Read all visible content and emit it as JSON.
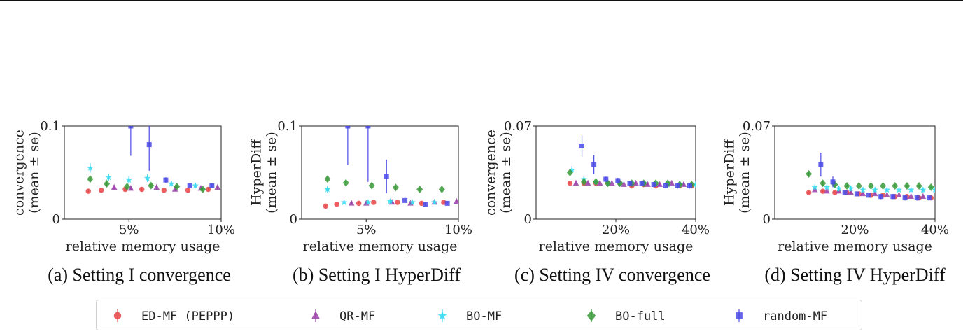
{
  "colors": {
    "ED-MF": "#e8474a",
    "QR-MF": "#9a3fa8",
    "BO-MF": "#35d8ee",
    "BO-FULL": "#3a9a3a",
    "RANDOM-MF": "#4a4ae6"
  },
  "legend": [
    {
      "key": "ED-MF",
      "label": "ED-MF (PEPPP)",
      "marker": "circle"
    },
    {
      "key": "QR-MF",
      "label": "QR-MF",
      "marker": "triangle"
    },
    {
      "key": "BO-MF",
      "label": "BO-MF",
      "marker": "star"
    },
    {
      "key": "BO-FULL",
      "label": "BO-full",
      "marker": "diamond"
    },
    {
      "key": "RANDOM-MF",
      "label": "random-MF",
      "marker": "square"
    }
  ],
  "chart_data": [
    {
      "type": "scatter",
      "caption": "(a) Setting I convergence",
      "xlabel": "relative memory usage",
      "ylabel": [
        "convergence",
        "(mean ± se)"
      ],
      "xlim": [
        1.5,
        10
      ],
      "ylim": [
        0,
        0.1
      ],
      "xticks": [
        {
          "v": 5,
          "label": "5%"
        },
        {
          "v": 10,
          "label": "10%"
        }
      ],
      "yticks": [
        {
          "v": 0,
          "label": "0"
        },
        {
          "v": 0.1,
          "label": "0.1"
        }
      ],
      "series": [
        {
          "name": "ED-MF",
          "points": [
            [
              2.8,
              0.03,
              0.002
            ],
            [
              3.5,
              0.031,
              0.002
            ],
            [
              4.8,
              0.032,
              0.002
            ],
            [
              5.7,
              0.032,
              0.002
            ],
            [
              6.9,
              0.031,
              0.002
            ],
            [
              8.2,
              0.031,
              0.002
            ],
            [
              9.3,
              0.032,
              0.002
            ]
          ]
        },
        {
          "name": "QR-MF",
          "points": [
            [
              4.2,
              0.034,
              0.002
            ],
            [
              5.1,
              0.033,
              0.002
            ],
            [
              6.5,
              0.034,
              0.002
            ],
            [
              7.5,
              0.032,
              0.002
            ],
            [
              8.9,
              0.033,
              0.002
            ],
            [
              9.8,
              0.034,
              0.002
            ]
          ]
        },
        {
          "name": "BO-MF",
          "points": [
            [
              2.9,
              0.055,
              0.005
            ],
            [
              3.9,
              0.045,
              0.004
            ],
            [
              5.0,
              0.042,
              0.004
            ],
            [
              6.0,
              0.044,
              0.004
            ],
            [
              7.3,
              0.038,
              0.003
            ],
            [
              8.6,
              0.036,
              0.003
            ]
          ]
        },
        {
          "name": "BO-FULL",
          "points": [
            [
              2.9,
              0.043,
              0.002
            ],
            [
              3.8,
              0.038,
              0.002
            ],
            [
              4.9,
              0.035,
              0.002
            ],
            [
              6.2,
              0.036,
              0.002
            ],
            [
              7.6,
              0.035,
              0.002
            ],
            [
              9.0,
              0.032,
              0.002
            ]
          ]
        },
        {
          "name": "RANDOM-MF",
          "points": [
            [
              5.1,
              0.1,
              0.032
            ],
            [
              6.1,
              0.08,
              0.028
            ],
            [
              7.0,
              0.042,
              0.003
            ],
            [
              8.3,
              0.036,
              0.002
            ],
            [
              9.5,
              0.036,
              0.002
            ]
          ]
        }
      ]
    },
    {
      "type": "scatter",
      "caption": "(b) Setting I HyperDiff",
      "xlabel": "relative memory usage",
      "ylabel": [
        "HyperDiff",
        "(mean ± se)"
      ],
      "xlim": [
        1.5,
        10
      ],
      "ylim": [
        0,
        0.1
      ],
      "xticks": [
        {
          "v": 5,
          "label": "5%"
        },
        {
          "v": 10,
          "label": "10%"
        }
      ],
      "yticks": [
        {
          "v": 0,
          "label": "0"
        },
        {
          "v": 0.1,
          "label": "0.1"
        }
      ],
      "series": [
        {
          "name": "ED-MF",
          "points": [
            [
              2.8,
              0.014,
              0.001
            ],
            [
              3.4,
              0.016,
              0.001
            ],
            [
              4.6,
              0.017,
              0.001
            ],
            [
              5.4,
              0.018,
              0.001
            ],
            [
              6.7,
              0.018,
              0.001
            ],
            [
              8.0,
              0.017,
              0.001
            ],
            [
              9.2,
              0.018,
              0.001
            ]
          ]
        },
        {
          "name": "QR-MF",
          "points": [
            [
              4.2,
              0.017,
              0.001
            ],
            [
              5.0,
              0.017,
              0.001
            ],
            [
              6.4,
              0.018,
              0.001
            ],
            [
              7.4,
              0.017,
              0.001
            ],
            [
              8.7,
              0.018,
              0.001
            ],
            [
              9.9,
              0.019,
              0.001
            ]
          ]
        },
        {
          "name": "BO-MF",
          "points": [
            [
              2.9,
              0.032,
              0.004
            ],
            [
              3.8,
              0.018,
              0.002
            ],
            [
              5.1,
              0.018,
              0.002
            ],
            [
              6.3,
              0.019,
              0.002
            ],
            [
              7.5,
              0.018,
              0.002
            ],
            [
              8.7,
              0.018,
              0.002
            ]
          ]
        },
        {
          "name": "BO-FULL",
          "points": [
            [
              2.9,
              0.043,
              0.002
            ],
            [
              3.9,
              0.039,
              0.002
            ],
            [
              5.3,
              0.036,
              0.002
            ],
            [
              6.6,
              0.034,
              0.002
            ],
            [
              7.9,
              0.032,
              0.002
            ],
            [
              9.1,
              0.032,
              0.002
            ]
          ]
        },
        {
          "name": "RANDOM-MF",
          "points": [
            [
              4.0,
              0.1,
              0.042
            ],
            [
              5.1,
              0.1,
              0.06
            ],
            [
              6.1,
              0.046,
              0.018
            ],
            [
              7.1,
              0.02,
              0.003
            ],
            [
              8.2,
              0.016,
              0.002
            ],
            [
              9.4,
              0.017,
              0.002
            ]
          ]
        }
      ]
    },
    {
      "type": "scatter",
      "caption": "(c) Setting IV convergence",
      "xlabel": "relative memory usage",
      "ylabel": [
        "convergence",
        "(mean ± se)"
      ],
      "xlim": [
        0,
        40
      ],
      "ylim": [
        0,
        0.07
      ],
      "xticks": [
        {
          "v": 20,
          "label": "20%"
        },
        {
          "v": 40,
          "label": "40%"
        }
      ],
      "yticks": [
        {
          "v": 0,
          "label": "0"
        },
        {
          "v": 0.07,
          "label": "0.07"
        }
      ],
      "series": [
        {
          "name": "ED-MF",
          "points": [
            [
              8.5,
              0.027,
              0.001
            ],
            [
              12,
              0.027,
              0.001
            ],
            [
              15,
              0.027,
              0.001
            ],
            [
              18,
              0.027,
              0.001
            ],
            [
              21,
              0.027,
              0.001
            ],
            [
              24,
              0.025,
              0.001
            ],
            [
              27,
              0.026,
              0.001
            ],
            [
              30,
              0.025,
              0.001
            ],
            [
              33,
              0.026,
              0.001
            ],
            [
              36,
              0.025,
              0.001
            ],
            [
              39,
              0.025,
              0.001
            ]
          ]
        },
        {
          "name": "QR-MF",
          "points": [
            [
              10,
              0.027,
              0.001
            ],
            [
              13,
              0.027,
              0.001
            ],
            [
              16,
              0.027,
              0.001
            ],
            [
              19,
              0.027,
              0.001
            ],
            [
              22,
              0.026,
              0.001
            ],
            [
              25,
              0.027,
              0.001
            ],
            [
              28,
              0.026,
              0.001
            ],
            [
              31,
              0.026,
              0.001
            ],
            [
              34,
              0.027,
              0.001
            ],
            [
              37,
              0.026,
              0.001
            ]
          ]
        },
        {
          "name": "BO-MF",
          "points": [
            [
              9,
              0.037,
              0.003
            ],
            [
              12,
              0.03,
              0.002
            ],
            [
              15,
              0.028,
              0.002
            ],
            [
              18,
              0.027,
              0.002
            ],
            [
              21,
              0.027,
              0.002
            ],
            [
              24,
              0.027,
              0.002
            ],
            [
              27,
              0.027,
              0.002
            ],
            [
              30,
              0.027,
              0.002
            ],
            [
              33,
              0.026,
              0.002
            ],
            [
              36,
              0.026,
              0.002
            ],
            [
              40,
              0.026,
              0.002
            ]
          ]
        },
        {
          "name": "BO-FULL",
          "points": [
            [
              8.5,
              0.035,
              0.002
            ],
            [
              12,
              0.028,
              0.002
            ],
            [
              15,
              0.028,
              0.002
            ],
            [
              18,
              0.027,
              0.001
            ],
            [
              21,
              0.027,
              0.001
            ],
            [
              24,
              0.027,
              0.001
            ],
            [
              27,
              0.027,
              0.001
            ],
            [
              30,
              0.027,
              0.001
            ],
            [
              33,
              0.027,
              0.001
            ],
            [
              36,
              0.026,
              0.001
            ],
            [
              39,
              0.026,
              0.001
            ]
          ]
        },
        {
          "name": "RANDOM-MF",
          "points": [
            [
              11.5,
              0.055,
              0.008
            ],
            [
              14.5,
              0.041,
              0.007
            ],
            [
              17.5,
              0.03,
              0.002
            ],
            [
              20.5,
              0.029,
              0.002
            ],
            [
              23.5,
              0.027,
              0.002
            ],
            [
              26.5,
              0.027,
              0.002
            ],
            [
              29.5,
              0.026,
              0.002
            ],
            [
              32.5,
              0.025,
              0.002
            ],
            [
              35.5,
              0.025,
              0.002
            ],
            [
              38.5,
              0.025,
              0.002
            ]
          ]
        }
      ]
    },
    {
      "type": "scatter",
      "caption": "(d) Setting IV HyperDiff",
      "xlabel": "relative memory usage",
      "ylabel": [
        "HyperDiff",
        "(mean ± se)"
      ],
      "xlim": [
        0,
        40
      ],
      "ylim": [
        0,
        0.07
      ],
      "xticks": [
        {
          "v": 20,
          "label": "20%"
        },
        {
          "v": 40,
          "label": "40%"
        }
      ],
      "yticks": [
        {
          "v": 0,
          "label": "0"
        },
        {
          "v": 0.07,
          "label": "0.07"
        }
      ],
      "series": [
        {
          "name": "ED-MF",
          "points": [
            [
              8.5,
              0.02,
              0.001
            ],
            [
              12,
              0.021,
              0.001
            ],
            [
              15,
              0.02,
              0.001
            ],
            [
              18,
              0.02,
              0.001
            ],
            [
              21,
              0.019,
              0.001
            ],
            [
              24,
              0.018,
              0.001
            ],
            [
              27,
              0.018,
              0.001
            ],
            [
              30,
              0.017,
              0.001
            ],
            [
              33,
              0.017,
              0.001
            ],
            [
              36,
              0.016,
              0.001
            ],
            [
              39,
              0.016,
              0.001
            ]
          ]
        },
        {
          "name": "QR-MF",
          "points": [
            [
              10,
              0.022,
              0.001
            ],
            [
              13,
              0.021,
              0.001
            ],
            [
              16,
              0.021,
              0.001
            ],
            [
              19,
              0.02,
              0.001
            ],
            [
              22,
              0.019,
              0.001
            ],
            [
              25,
              0.019,
              0.001
            ],
            [
              28,
              0.018,
              0.001
            ],
            [
              31,
              0.018,
              0.001
            ],
            [
              34,
              0.017,
              0.001
            ],
            [
              37,
              0.017,
              0.001
            ]
          ]
        },
        {
          "name": "BO-MF",
          "points": [
            [
              10,
              0.024,
              0.002
            ],
            [
              13,
              0.024,
              0.002
            ],
            [
              16,
              0.023,
              0.002
            ],
            [
              19,
              0.023,
              0.002
            ],
            [
              22,
              0.022,
              0.002
            ],
            [
              25,
              0.022,
              0.002
            ],
            [
              28,
              0.022,
              0.002
            ],
            [
              31,
              0.022,
              0.002
            ],
            [
              34,
              0.022,
              0.002
            ],
            [
              37,
              0.022,
              0.002
            ],
            [
              40,
              0.022,
              0.002
            ]
          ]
        },
        {
          "name": "BO-FULL",
          "points": [
            [
              8.5,
              0.034,
              0.002
            ],
            [
              12,
              0.027,
              0.002
            ],
            [
              15,
              0.026,
              0.002
            ],
            [
              18,
              0.025,
              0.001
            ],
            [
              21,
              0.025,
              0.001
            ],
            [
              24,
              0.025,
              0.001
            ],
            [
              27,
              0.025,
              0.001
            ],
            [
              30,
              0.025,
              0.001
            ],
            [
              33,
              0.025,
              0.001
            ],
            [
              36,
              0.025,
              0.001
            ],
            [
              39,
              0.024,
              0.001
            ]
          ]
        },
        {
          "name": "RANDOM-MF",
          "points": [
            [
              11.5,
              0.041,
              0.009
            ],
            [
              14.5,
              0.028,
              0.004
            ],
            [
              17.5,
              0.02,
              0.002
            ],
            [
              20.5,
              0.019,
              0.002
            ],
            [
              23.5,
              0.018,
              0.002
            ],
            [
              26.5,
              0.017,
              0.002
            ],
            [
              29.5,
              0.017,
              0.002
            ],
            [
              32.5,
              0.016,
              0.002
            ],
            [
              35.5,
              0.016,
              0.002
            ],
            [
              38.5,
              0.016,
              0.002
            ]
          ]
        }
      ]
    }
  ]
}
